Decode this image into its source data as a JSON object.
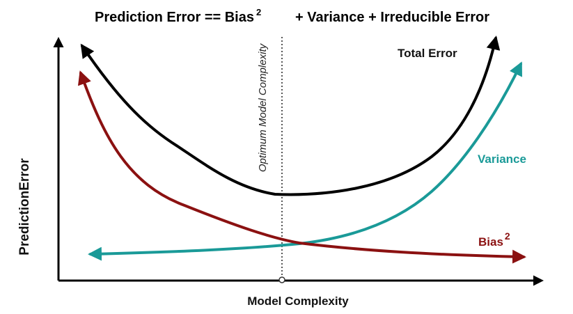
{
  "title": {
    "prefix": "Prediction Error == Bias",
    "superscript": "2",
    "suffix": "+ Variance + Irreducible Error"
  },
  "axes": {
    "x_label": "Model Complexity",
    "y_label": "PredictionError"
  },
  "optimum": {
    "label": "Optimum Model Complexity"
  },
  "curves": {
    "total": {
      "label": "Total Error",
      "color": "#000000"
    },
    "variance": {
      "label": "Variance",
      "color": "#1a9a98"
    },
    "bias": {
      "label": "Bias",
      "superscript": "2",
      "color": "#8b1111"
    }
  }
}
